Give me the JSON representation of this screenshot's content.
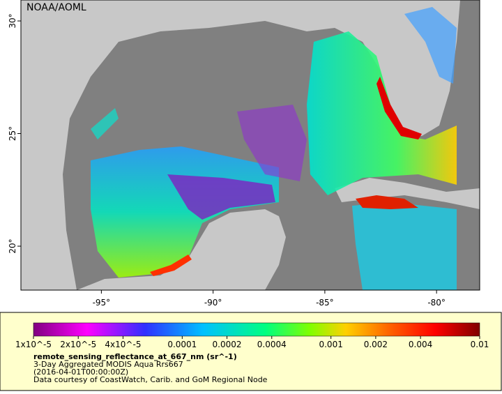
{
  "map": {
    "credit": "NOAA/AOML",
    "lon_range": [
      -98.6,
      -78.07
    ],
    "lat_range": [
      18.05,
      30.93
    ],
    "lon_ticks": [
      {
        "value": -95,
        "label": "-95°"
      },
      {
        "value": -90,
        "label": "-90°"
      },
      {
        "value": -85,
        "label": "-85°"
      },
      {
        "value": -80,
        "label": "-80°"
      }
    ],
    "lat_ticks": [
      {
        "value": 20,
        "label": "20°"
      },
      {
        "value": 25,
        "label": "25°"
      },
      {
        "value": 30,
        "label": "30°"
      }
    ]
  },
  "colorbar": {
    "scale": "log",
    "range": [
      1e-05,
      0.01
    ],
    "ticks": [
      {
        "value": 1e-05,
        "label": "1x10^-5"
      },
      {
        "value": 2e-05,
        "label": "2x10^-5"
      },
      {
        "value": 4e-05,
        "label": "4x10^-5"
      },
      0.0001,
      0.0002,
      0.0004,
      0.001,
      0.002,
      0.004,
      0.01
    ],
    "title": "remote_sensing_reflectance_at_667_nm (sr^-1)",
    "subtitle": "3-Day Aggregated MODIS Aqua Rrs667",
    "date": "(2016-04-01T00:00:00Z)",
    "source": "Data courtesy of CoastWatch, Carib. and GoM Regional Node"
  }
}
